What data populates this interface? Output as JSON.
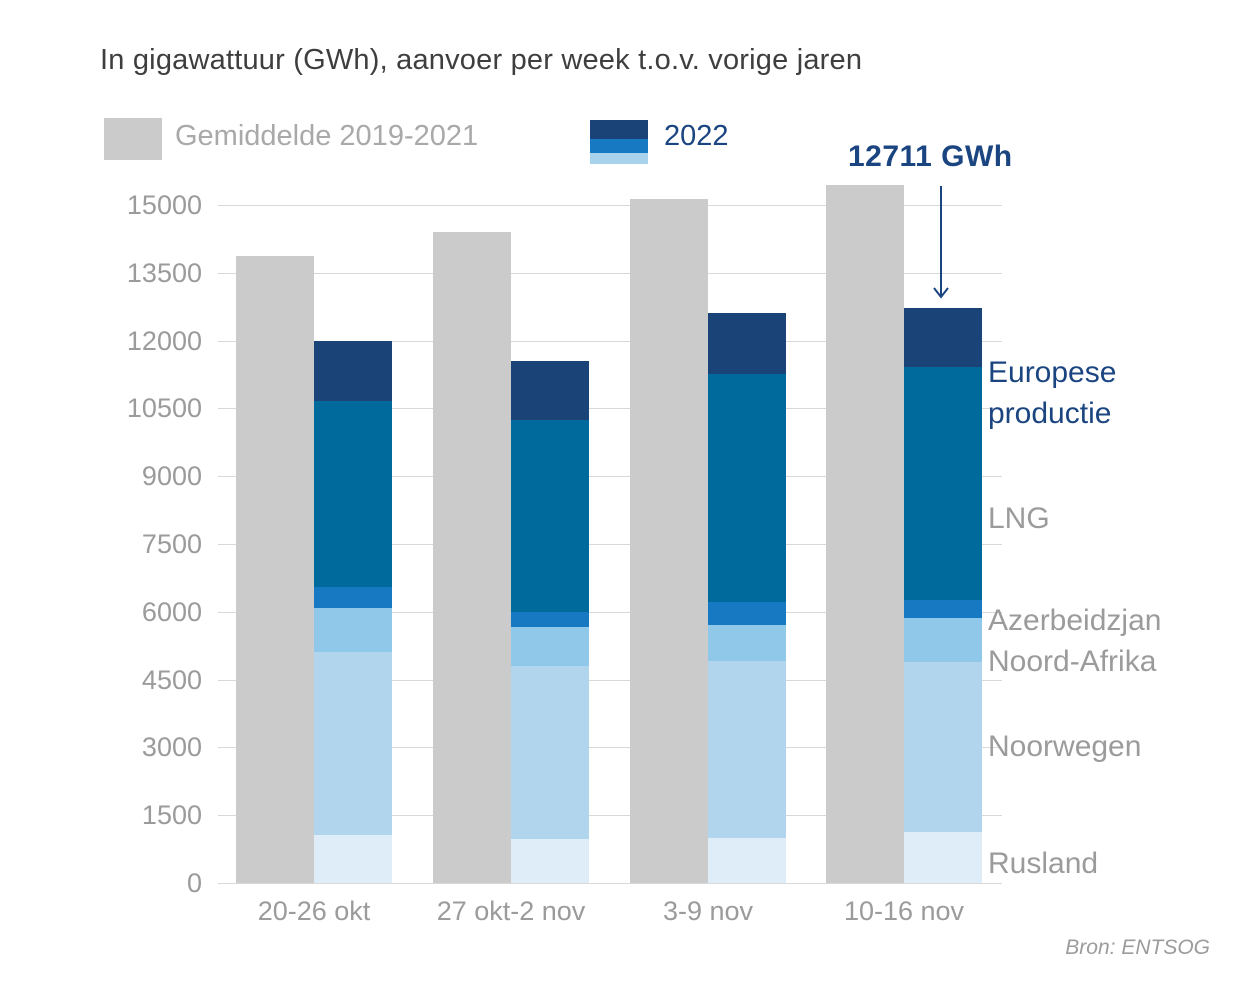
{
  "title": "In gigawattuur (GWh), aanvoer per week t.o.v. vorige jaren",
  "legend": {
    "avg_label": "Gemiddelde 2019-2021",
    "year_label": "2022",
    "swatch_avg_color": "#cbcbcb",
    "swatch_2022_colors": [
      "#1a4377",
      "#1779c2",
      "#a9d3ec"
    ]
  },
  "annotation": {
    "text": "12711 GWh",
    "points_to": "top of 2022 bar, week 10-16 nov"
  },
  "right_labels": [
    {
      "text": "Europese productie",
      "color": "navy"
    },
    {
      "text": "LNG",
      "color": "gray"
    },
    {
      "text": "Azerbeidzjan",
      "color": "gray"
    },
    {
      "text": "Noord-Afrika",
      "color": "gray"
    },
    {
      "text": "Noorwegen",
      "color": "gray"
    },
    {
      "text": "Rusland",
      "color": "gray"
    }
  ],
  "source": "Bron: ENTSOG",
  "colors": {
    "navy_text": "#1b4580",
    "gray_bar": "#cbcbcb",
    "axis_text": "#9b9b9b",
    "gridline": "#d9d9d9",
    "title_text": "#3e3e3e"
  },
  "chart_data": {
    "type": "bar",
    "subtype": "grouped-average-vs-stacked-2022",
    "title": "In gigawattuur (GWh), aanvoer per week t.o.v. vorige jaren",
    "unit": "GWh",
    "categories": [
      "20-26 okt",
      "27 okt-2 nov",
      "3-9 nov",
      "10-16 nov"
    ],
    "avg_series": {
      "name": "Gemiddelde 2019-2021",
      "color": "#cbcbcb",
      "values": [
        13870,
        14400,
        15130,
        15440
      ]
    },
    "stack_series": [
      {
        "name": "Rusland",
        "color": "#deedf7",
        "values": [
          1060,
          970,
          1000,
          1130
        ]
      },
      {
        "name": "Noorwegen",
        "color": "#b2d5ee",
        "values": [
          4050,
          3830,
          3910,
          3760
        ]
      },
      {
        "name": "Noord-Afrika",
        "color": "#8fc8e9",
        "values": [
          970,
          860,
          800,
          970
        ]
      },
      {
        "name": "Azerbeidzjan",
        "color": "#1779c2",
        "values": [
          470,
          330,
          505,
          400
        ]
      },
      {
        "name": "LNG",
        "color": "#006a9d",
        "values": [
          4110,
          4250,
          5045,
          5155
        ]
      },
      {
        "name": "Europese productie",
        "color": "#1a4377",
        "values": [
          1330,
          1310,
          1350,
          1296
        ]
      }
    ],
    "stack_totals_2022": [
      11990,
      11550,
      12610,
      12711
    ],
    "annotated_value": 12711,
    "yticks": [
      0,
      1500,
      3000,
      4500,
      6000,
      7500,
      9000,
      10500,
      12000,
      13500,
      15000
    ],
    "ylim": [
      0,
      15550
    ],
    "grid": true,
    "legend_position": "top",
    "xlabel": "",
    "ylabel": ""
  }
}
